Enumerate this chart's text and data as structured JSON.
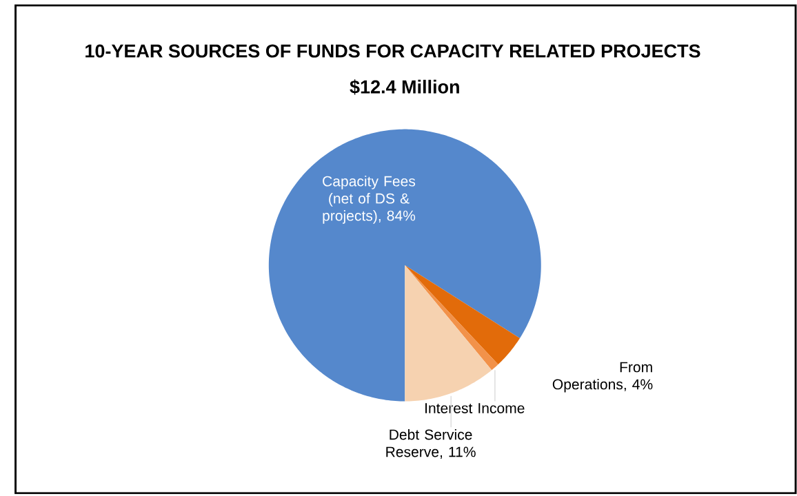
{
  "chart_data": {
    "type": "pie",
    "title": "10-YEAR SOURCES OF FUNDS FOR CAPACITY RELATED PROJECTS",
    "subtitle": "$12.4 Million",
    "categories": [
      "Capacity Fees (net of DS & projects), 84%",
      "From Operations, 4%",
      "Interest Income",
      "Debt Service Reserve, 11%"
    ],
    "values": [
      84,
      4,
      1,
      11
    ],
    "colors": [
      "#5588cc",
      "#e26b0a",
      "#f2924a",
      "#f6d2b0"
    ]
  }
}
